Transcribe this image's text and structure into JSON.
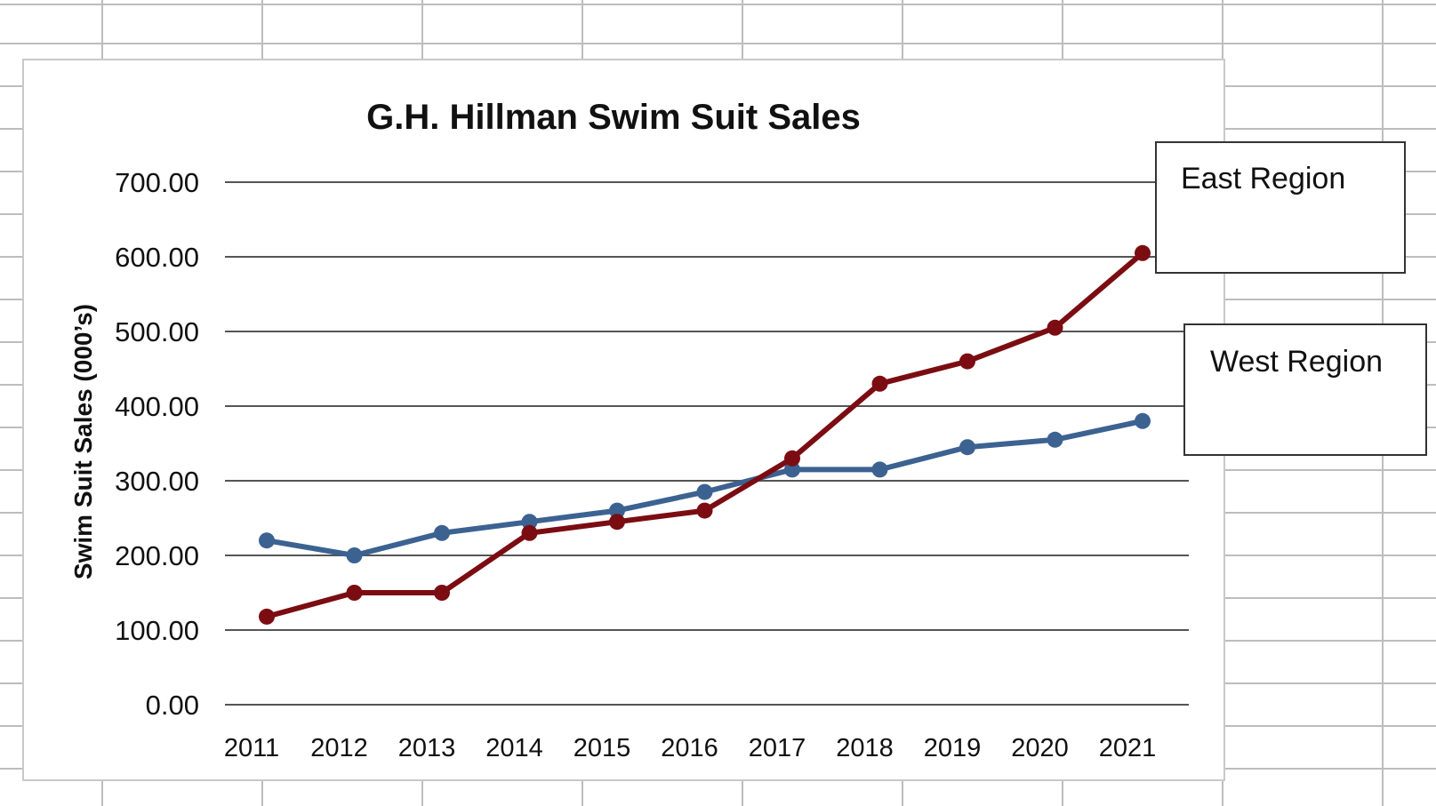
{
  "chart_data": {
    "type": "line",
    "title": "G.H. Hillman Swim Suit Sales",
    "xlabel": "",
    "ylabel": "Swim Suit Sales (000’s)",
    "ylim": [
      0,
      700
    ],
    "y_ticks": [
      0,
      100,
      200,
      300,
      400,
      500,
      600,
      700
    ],
    "y_tick_labels": [
      "0.00",
      "100.00",
      "200.00",
      "300.00",
      "400.00",
      "500.00",
      "600.00",
      "700.00"
    ],
    "categories": [
      "2011",
      "2012",
      "2013",
      "2014",
      "2015",
      "2016",
      "2017",
      "2018",
      "2019",
      "2020",
      "2021"
    ],
    "grid": "horizontal",
    "series": [
      {
        "name": "East Region",
        "color": "#7b0d12",
        "values": [
          118,
          150,
          150,
          230,
          245,
          260,
          330,
          430,
          460,
          505,
          605
        ]
      },
      {
        "name": "West Region",
        "color": "#3c6291",
        "values": [
          220,
          200,
          230,
          245,
          260,
          285,
          315,
          315,
          345,
          355,
          380
        ]
      }
    ],
    "callouts": [
      "East Region",
      "West Region"
    ]
  }
}
